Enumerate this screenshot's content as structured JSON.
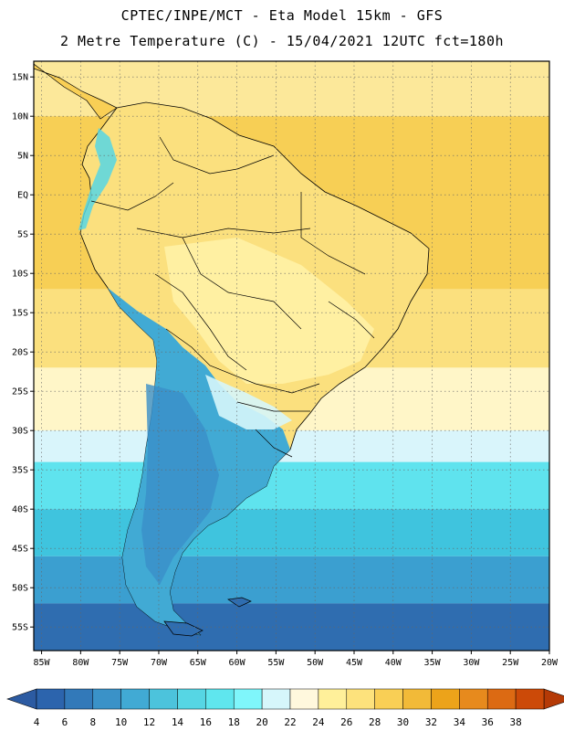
{
  "header": {
    "title_line1": "CPTEC/INPE/MCT -  Eta Model 15km - GFS",
    "title_line2": "2 Metre Temperature (C) - 15/04/2021 12UTC fct=180h"
  },
  "map": {
    "lat_range": [
      17,
      -58
    ],
    "lon_range": [
      -86,
      -20
    ],
    "lat_ticks": [
      {
        "value": 15,
        "label": "15N"
      },
      {
        "value": 10,
        "label": "10N"
      },
      {
        "value": 5,
        "label": "5N"
      },
      {
        "value": 0,
        "label": "EQ"
      },
      {
        "value": -5,
        "label": "5S"
      },
      {
        "value": -10,
        "label": "10S"
      },
      {
        "value": -15,
        "label": "15S"
      },
      {
        "value": -20,
        "label": "20S"
      },
      {
        "value": -25,
        "label": "25S"
      },
      {
        "value": -30,
        "label": "30S"
      },
      {
        "value": -35,
        "label": "35S"
      },
      {
        "value": -40,
        "label": "40S"
      },
      {
        "value": -45,
        "label": "45S"
      },
      {
        "value": -50,
        "label": "50S"
      },
      {
        "value": -55,
        "label": "55S"
      }
    ],
    "lon_ticks": [
      {
        "value": -85,
        "label": "85W"
      },
      {
        "value": -80,
        "label": "80W"
      },
      {
        "value": -75,
        "label": "75W"
      },
      {
        "value": -70,
        "label": "70W"
      },
      {
        "value": -65,
        "label": "65W"
      },
      {
        "value": -60,
        "label": "60W"
      },
      {
        "value": -55,
        "label": "55W"
      },
      {
        "value": -50,
        "label": "50W"
      },
      {
        "value": -45,
        "label": "45W"
      },
      {
        "value": -40,
        "label": "40W"
      },
      {
        "value": -35,
        "label": "35W"
      },
      {
        "value": -30,
        "label": "30W"
      },
      {
        "value": -25,
        "label": "25W"
      },
      {
        "value": -20,
        "label": "20W"
      }
    ],
    "grid": "dotted",
    "ocean_bands": [
      {
        "lat_top": 17,
        "lat_bottom": 10,
        "color": "#fce89a"
      },
      {
        "lat_top": 10,
        "lat_bottom": -12,
        "color": "#f7cf55"
      },
      {
        "lat_top": -12,
        "lat_bottom": -22,
        "color": "#fbe07e"
      },
      {
        "lat_top": -22,
        "lat_bottom": -30,
        "color": "#fff6c8"
      },
      {
        "lat_top": -30,
        "lat_bottom": -34,
        "color": "#d9f5fb"
      },
      {
        "lat_top": -34,
        "lat_bottom": -40,
        "color": "#5fe3ee"
      },
      {
        "lat_top": -40,
        "lat_bottom": -46,
        "color": "#3fc4de"
      },
      {
        "lat_top": -46,
        "lat_bottom": -52,
        "color": "#3b9fd0"
      },
      {
        "lat_top": -52,
        "lat_bottom": -58,
        "color": "#2f6db0"
      }
    ],
    "land_colors": {
      "tropical": "#fbe07e",
      "warm": "#fff2a8",
      "andes": "#3fb8d6",
      "patagonia": "#3a8fc8"
    }
  },
  "colorbar": {
    "labels": [
      "4",
      "6",
      "8",
      "10",
      "12",
      "14",
      "16",
      "18",
      "20",
      "22",
      "24",
      "26",
      "28",
      "30",
      "32",
      "34",
      "36",
      "38"
    ],
    "colors": [
      "#2c64ad",
      "#3279b9",
      "#3a92c8",
      "#41aad4",
      "#4cc3dc",
      "#56d6e4",
      "#5fe6ee",
      "#7ff6fb",
      "#d6f6fb",
      "#fff8dd",
      "#fff09a",
      "#fde27c",
      "#f9cf55",
      "#f2ba38",
      "#eca31a",
      "#e78a1d",
      "#dc6a13",
      "#cc4a08"
    ],
    "left_arrow_color": "#2c5ba2",
    "right_arrow_color": "#b53a06"
  }
}
